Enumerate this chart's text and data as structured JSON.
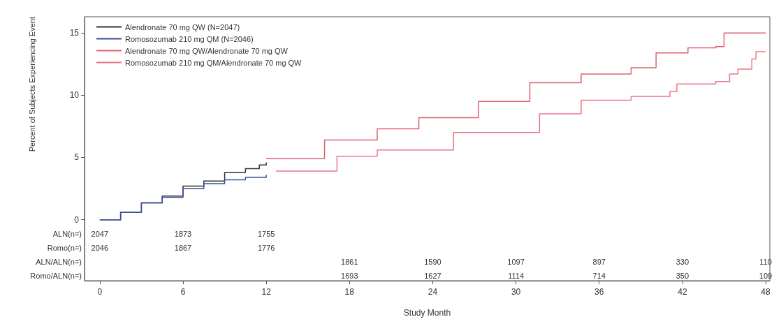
{
  "chart_data": {
    "type": "step",
    "xlabel": "Study Month",
    "ylabel": "Percent of Subjects Experiencing Event",
    "xlim": [
      -1.1,
      48.3
    ],
    "ylim": [
      -4.9,
      16.3
    ],
    "xticks": [
      0,
      6,
      12,
      {
        "value": 18,
        "label": "18"
      },
      24,
      30,
      36,
      42,
      48
    ],
    "yticks": [
      0,
      5,
      10,
      15
    ],
    "grid": false,
    "legend": "top left",
    "marker": "none",
    "line_style": "solid",
    "series": [
      {
        "name": "Alendronate 70 mg QW (N=2047)",
        "color": "#333333",
        "x": [
          0,
          1.5,
          3,
          4.5,
          6,
          7.5,
          9,
          10.5,
          11.5,
          12
        ],
        "values": [
          0,
          0.6,
          1.35,
          1.9,
          2.7,
          3.1,
          3.8,
          4.1,
          4.4,
          4.6
        ]
      },
      {
        "name": "Romosozumab 210 mg QM (N=2046)",
        "color": "#3a4fa0",
        "x": [
          0,
          1.5,
          3,
          4.5,
          6,
          7.5,
          9,
          10.5,
          12
        ],
        "values": [
          0,
          0.6,
          1.35,
          1.8,
          2.5,
          2.9,
          3.2,
          3.4,
          3.6
        ]
      },
      {
        "name": "Alendronate 70 mg QW/Alendronate 70 mg QW",
        "color": "#e06070",
        "x": [
          12,
          16.2,
          20,
          23,
          27.3,
          31,
          34.7,
          38.3,
          40.1,
          42.4,
          44.4,
          45,
          48
        ],
        "values": [
          4.9,
          6.4,
          7.3,
          8.2,
          9.5,
          11.0,
          11.7,
          12.2,
          13.4,
          13.8,
          13.9,
          15.0,
          15.0
        ]
      },
      {
        "name": "Romosozumab 210 mg QM/Alendronate 70 mg QW",
        "color": "#e87888",
        "x": [
          12.7,
          17.1,
          20,
          25.5,
          31.7,
          34.7,
          38.3,
          41.1,
          41.6,
          44.4,
          45.4,
          46,
          47,
          47.3,
          48
        ],
        "values": [
          3.9,
          5.1,
          5.6,
          7.0,
          8.5,
          9.6,
          9.9,
          10.3,
          10.9,
          11.1,
          11.7,
          12.1,
          12.9,
          13.5,
          13.5
        ]
      }
    ],
    "annotations": [
      "ALN(n=)",
      "2047",
      "1873",
      "1755",
      "Romo(n=)",
      "2046",
      "1867",
      "1776",
      "ALN/ALN(n=)",
      "1861",
      "1590",
      "1097",
      "897",
      "330",
      "110",
      "Romo/ALN(n=)",
      "1693",
      "1627",
      "1114",
      "714",
      "350",
      "109"
    ]
  }
}
